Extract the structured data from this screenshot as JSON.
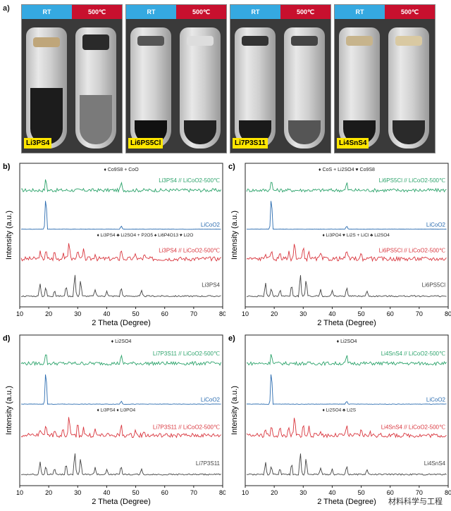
{
  "panel_a": {
    "label": "a)",
    "tags": {
      "rt": "RT",
      "hot": "500℃"
    },
    "photos": [
      {
        "label": "Li3PS4"
      },
      {
        "label": "Li6PS5Cl"
      },
      {
        "label": "Li7P3S11"
      },
      {
        "label": "Li4SnS4"
      }
    ]
  },
  "charts": [
    {
      "label": "b)",
      "xlabel": "2 Theta (Degree)",
      "ylabel": "Intensity (a.u.)",
      "xticks": [
        10,
        20,
        30,
        40,
        50,
        60,
        70,
        80
      ],
      "annot_top": "♦ Co9S8 + CoO",
      "series_top": {
        "name": "Li3PS4 // LiCoO2-500℃",
        "color": "#2ca36b"
      },
      "ref": {
        "name": "LiCoO2",
        "color": "#2b6cb0"
      },
      "annot_mid": "♦ Li3PS4 ♣ Li2SO4 + P2O5 ♠ Li6P4O13 ♥ Li2O",
      "series_mid": {
        "name": "Li3PS4 // LiCoO2-500℃",
        "color": "#d9363e"
      },
      "series_bot": {
        "name": "Li3PS4",
        "color": "#444"
      }
    },
    {
      "label": "c)",
      "xlabel": "2 Theta (Degree)",
      "ylabel": "Intensity (a.u.)",
      "xticks": [
        10,
        20,
        30,
        40,
        50,
        60,
        70,
        80
      ],
      "annot_top": "♦ CoS + Li2SO4 ♥ Co9S8",
      "series_top": {
        "name": "Li6PS5Cl // LiCoO2-500℃",
        "color": "#2ca36b"
      },
      "ref": {
        "name": "LiCoO2",
        "color": "#2b6cb0"
      },
      "annot_mid": "♦ Li3PO4 ♥ Li2S + LiCl ♣ Li2SO4",
      "series_mid": {
        "name": "Li6PS5Cl // LiCoO2-500℃",
        "color": "#d9363e"
      },
      "series_bot": {
        "name": "Li6PS5Cl",
        "color": "#444"
      }
    },
    {
      "label": "d)",
      "xlabel": "2 Theta (Degree)",
      "ylabel": "Intensity (a.u.)",
      "xticks": [
        10,
        20,
        30,
        40,
        50,
        60,
        70,
        80
      ],
      "annot_top": "♦ Li2SO4",
      "series_top": {
        "name": "Li7P3S11 // LiCoO2-500℃",
        "color": "#2ca36b"
      },
      "ref": {
        "name": "LiCoO2",
        "color": "#2b6cb0"
      },
      "annot_mid": "♦ Li3PS4 ♦ Li3PO4",
      "series_mid": {
        "name": "Li7P3S11 // LiCoO2-500℃",
        "color": "#d9363e"
      },
      "series_bot": {
        "name": "Li7P3S11",
        "color": "#444"
      }
    },
    {
      "label": "e)",
      "xlabel": "2 Theta (Degree)",
      "ylabel": "Intensity (a.u.)",
      "xticks": [
        10,
        20,
        30,
        40,
        50,
        60,
        70,
        80
      ],
      "annot_top": "♦ Li2SO4",
      "series_top": {
        "name": "Li4SnS4 // LiCoO2-500℃",
        "color": "#2ca36b"
      },
      "ref": {
        "name": "LiCoO2",
        "color": "#2b6cb0"
      },
      "annot_mid": "♦ Li2SO4 ♣ Li2S",
      "series_mid": {
        "name": "Li4SnS4 // LiCoO2-500℃",
        "color": "#d9363e"
      },
      "series_bot": {
        "name": "Li4SnS4",
        "color": "#444"
      }
    }
  ],
  "watermark": "材料科学与工程"
}
